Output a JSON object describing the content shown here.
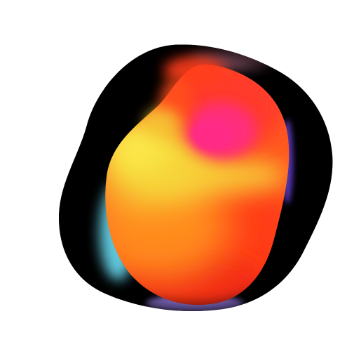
{
  "artwork": {
    "subject": "blob",
    "colors": {
      "background": "#ffffff",
      "outer_shape": "#000000",
      "red_orange": "#ff3d1f",
      "orange": "#ff7a1a",
      "yellow": "#f4dd3a",
      "magenta": "#ff2f7a",
      "cyan_rim": "#6fe7ff",
      "violet_rim": "#a98bff",
      "deep_red": "#d9151a"
    }
  }
}
